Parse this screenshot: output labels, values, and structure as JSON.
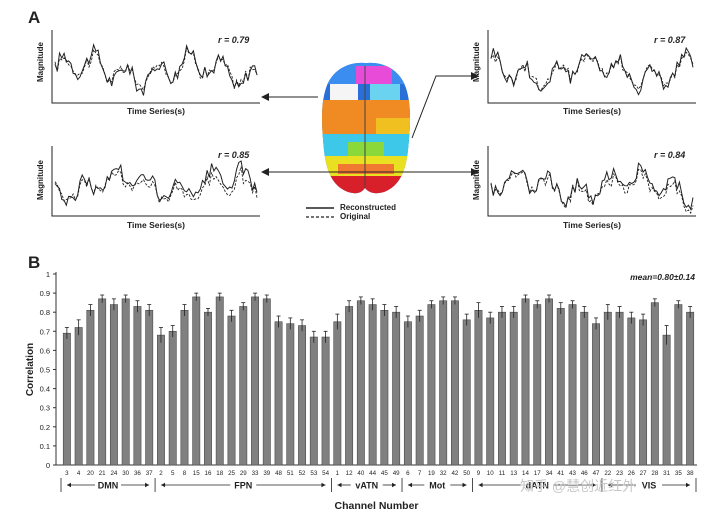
{
  "panels": {
    "a_label": "A",
    "b_label": "B"
  },
  "series_panels": [
    {
      "r_label": "r = 0.79",
      "ylabel": "Magnitude",
      "xlabel": "Time Series(s)"
    },
    {
      "r_label": "r = 0.87",
      "ylabel": "Magnitude",
      "xlabel": "Time Series(s)"
    },
    {
      "r_label": "r = 0.85",
      "ylabel": "Magnitude",
      "xlabel": "Time Series(s)"
    },
    {
      "r_label": "r = 0.84",
      "ylabel": "Magnitude",
      "xlabel": "Time Series(s)"
    }
  ],
  "legend": {
    "reconstructed": "Reconstructed",
    "original": "Original"
  },
  "watermark": "知乎 @慧创近红外",
  "colors": {
    "bar": "#808080",
    "bar_edge": "#4a4a4a",
    "axis": "#333333"
  },
  "chart_data": {
    "type": "bar",
    "ylabel": "Correlation",
    "xlabel": "Channel Number",
    "annotation": "mean=0.80±0.14",
    "ylim": [
      0,
      1
    ],
    "yticks": [
      0,
      0.1,
      0.2,
      0.3,
      0.4,
      0.5,
      0.6,
      0.7,
      0.8,
      0.9,
      1
    ],
    "categories": [
      "3",
      "4",
      "20",
      "21",
      "24",
      "30",
      "36",
      "37",
      "2",
      "5",
      "8",
      "15",
      "16",
      "18",
      "25",
      "29",
      "33",
      "39",
      "48",
      "51",
      "52",
      "53",
      "54",
      "1",
      "12",
      "40",
      "44",
      "45",
      "49",
      "6",
      "7",
      "19",
      "32",
      "42",
      "50",
      "9",
      "10",
      "11",
      "13",
      "14",
      "17",
      "34",
      "41",
      "43",
      "46",
      "47",
      "22",
      "23",
      "26",
      "27",
      "28",
      "31",
      "35",
      "38"
    ],
    "values": [
      0.69,
      0.72,
      0.81,
      0.87,
      0.84,
      0.87,
      0.83,
      0.81,
      0.68,
      0.7,
      0.81,
      0.88,
      0.8,
      0.88,
      0.78,
      0.83,
      0.88,
      0.87,
      0.75,
      0.74,
      0.73,
      0.67,
      0.67,
      0.75,
      0.83,
      0.86,
      0.84,
      0.81,
      0.8,
      0.75,
      0.78,
      0.84,
      0.86,
      0.86,
      0.76,
      0.81,
      0.77,
      0.8,
      0.8,
      0.87,
      0.84,
      0.87,
      0.82,
      0.84,
      0.8,
      0.74,
      0.8,
      0.8,
      0.77,
      0.76,
      0.85,
      0.68,
      0.84,
      0.8
    ],
    "errors": [
      0.03,
      0.04,
      0.03,
      0.02,
      0.03,
      0.02,
      0.03,
      0.03,
      0.04,
      0.03,
      0.03,
      0.02,
      0.02,
      0.02,
      0.03,
      0.02,
      0.02,
      0.02,
      0.03,
      0.03,
      0.03,
      0.03,
      0.03,
      0.04,
      0.03,
      0.02,
      0.03,
      0.03,
      0.03,
      0.03,
      0.03,
      0.02,
      0.02,
      0.02,
      0.03,
      0.04,
      0.03,
      0.03,
      0.03,
      0.02,
      0.02,
      0.02,
      0.03,
      0.02,
      0.03,
      0.03,
      0.04,
      0.03,
      0.03,
      0.03,
      0.02,
      0.05,
      0.02,
      0.03
    ],
    "groups": [
      {
        "name": "DMN",
        "count": 8
      },
      {
        "name": "FPN",
        "count": 15
      },
      {
        "name": "vATN",
        "count": 6
      },
      {
        "name": "Mot",
        "count": 6
      },
      {
        "name": "dATN",
        "count": 11
      },
      {
        "name": "VIS",
        "count": 8
      }
    ]
  }
}
